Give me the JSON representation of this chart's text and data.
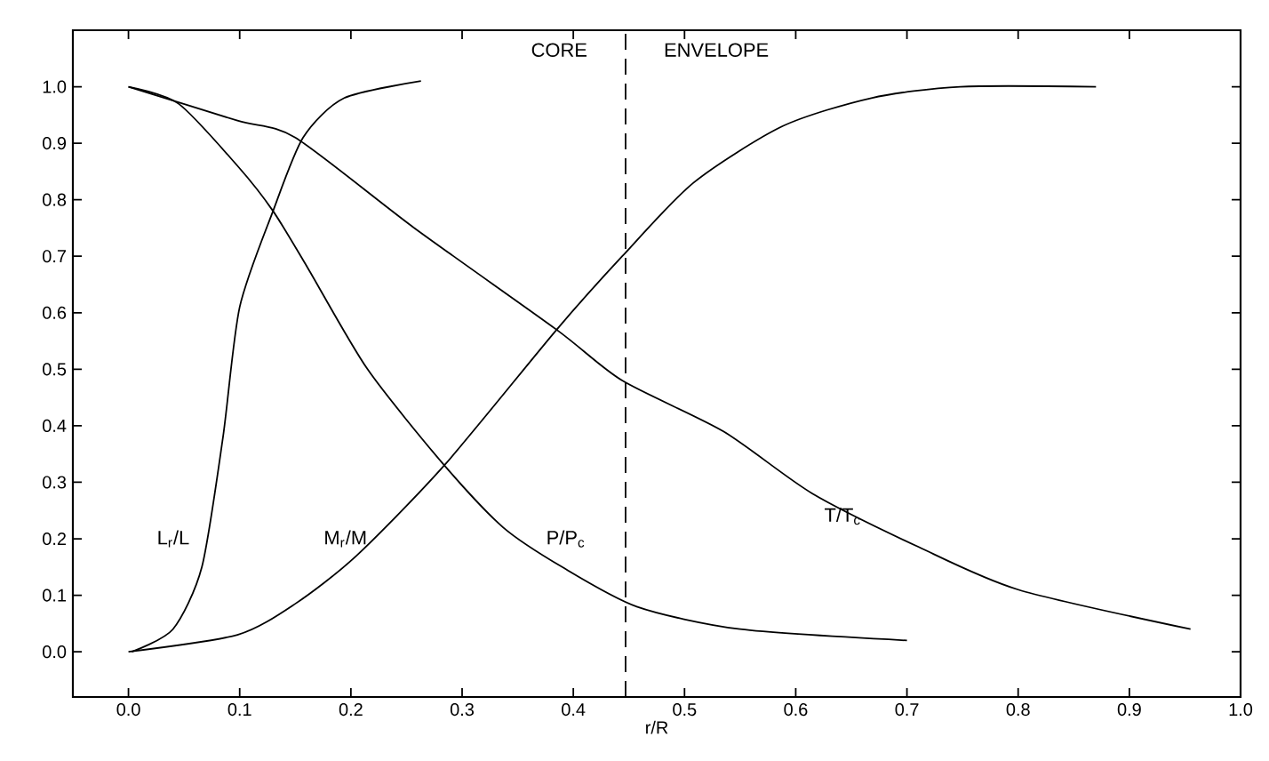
{
  "chart_data": {
    "type": "line",
    "xlabel": "r/R",
    "xlim": [
      -0.05,
      1.0
    ],
    "ylim": [
      -0.08,
      1.1
    ],
    "xticks": [
      {
        "value": 0,
        "label": "0.0"
      },
      0.1,
      0.2,
      0.3,
      0.4,
      0.5,
      0.6,
      0.7,
      0.8,
      0.9,
      {
        "value": 1,
        "label": "1.0"
      }
    ],
    "yticks": [
      {
        "value": 0,
        "label": "0.0"
      },
      0.1,
      0.2,
      0.3,
      0.4,
      0.5,
      0.6,
      0.7,
      0.8,
      0.9,
      {
        "value": 1,
        "label": "1.0"
      }
    ],
    "series": [
      {
        "name": "L$_{r}$/L",
        "color": "#000000",
        "x": [
          0.003,
          0.04,
          0.066,
          0.085,
          0.1,
          0.13,
          0.157,
          0.194,
          0.263
        ],
        "values": [
          0,
          0.04,
          0.15,
          0.38,
          0.61,
          0.78,
          0.91,
          0.98,
          1.01
        ]
      },
      {
        "name": "M$_{r}$/M",
        "color": "#000000",
        "x": [
          0,
          0.098,
          0.15,
          0.205,
          0.284,
          0.385,
          0.444,
          0.508,
          0.588,
          0.668,
          0.748,
          0.87
        ],
        "values": [
          0,
          0.03,
          0.085,
          0.17,
          0.33,
          0.57,
          0.7,
          0.83,
          0.93,
          0.98,
          1.0,
          1.0
        ]
      },
      {
        "name": "P/P$_{c}$",
        "color": "#000000",
        "x": [
          0,
          0.045,
          0.098,
          0.13,
          0.161,
          0.215,
          0.284,
          0.337,
          0.39,
          0.457,
          0.55,
          0.7
        ],
        "values": [
          1.0,
          0.97,
          0.86,
          0.78,
          0.68,
          0.5,
          0.33,
          0.22,
          0.15,
          0.08,
          0.04,
          0.02
        ]
      },
      {
        "name": "T/T$_{c}$",
        "color": "#000000",
        "x": [
          0,
          0.098,
          0.15,
          0.257,
          0.385,
          0.444,
          0.535,
          0.615,
          0.711,
          0.8,
          0.955
        ],
        "values": [
          1.0,
          0.94,
          0.91,
          0.75,
          0.57,
          0.48,
          0.39,
          0.28,
          0.185,
          0.11,
          0.04
        ]
      }
    ],
    "ref_lines": [
      {
        "axis": "x",
        "value": 0.447,
        "color": "#000000",
        "line_style": "dashed"
      }
    ],
    "annotations": [
      "CORE",
      "ENVELOPE"
    ],
    "line_style": "solid"
  }
}
